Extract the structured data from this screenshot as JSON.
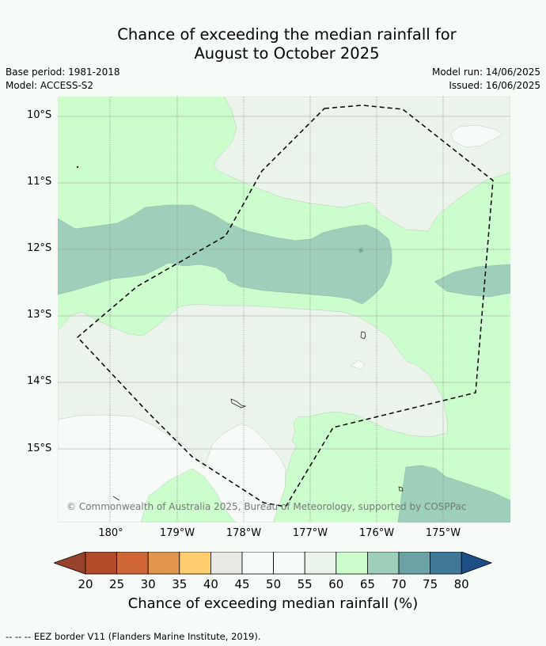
{
  "title": {
    "line1": "Chance of exceeding the median rainfall for",
    "line2": "August to October 2025"
  },
  "meta": {
    "base_period": "Base period: 1981-2018",
    "model": "Model: ACCESS-S2",
    "model_run": "Model run: 14/06/2025",
    "issued": "Issued: 16/06/2025"
  },
  "axes": {
    "lat_labels": [
      "10°S",
      "11°S",
      "12°S",
      "13°S",
      "14°S",
      "15°S"
    ],
    "lon_labels": [
      "180°",
      "179°W",
      "178°W",
      "177°W",
      "176°W",
      "175°W"
    ]
  },
  "copyright": "© Commonwealth of Australia 2025, Bureau of Meteorology, supported by COSPPac",
  "colorbar": {
    "ticks": [
      "20",
      "25",
      "30",
      "35",
      "40",
      "45",
      "50",
      "55",
      "60",
      "65",
      "70",
      "75",
      "80"
    ],
    "label": "Chance of exceeding median rainfall (%)",
    "colors": [
      "#b24b29",
      "#cf6736",
      "#e3964b",
      "#fdcc6c",
      "#e8e8e4",
      "#f7fbf7",
      "#f7fbf7",
      "#eaf4ea",
      "#ccfdcc",
      "#9ecfba",
      "#6aa2a6",
      "#407898"
    ],
    "under_color": "#97432b",
    "over_color": "#1c4f86"
  },
  "footer": "--  --  -- EEZ border V11 (Flanders Marine Institute, 2019).",
  "colors": {
    "background": "#f7fbf7",
    "green_light": "#ccfdcc",
    "green_pale": "#eaf4ea",
    "teal": "#9ecfba",
    "white": "#f7fbf7"
  }
}
